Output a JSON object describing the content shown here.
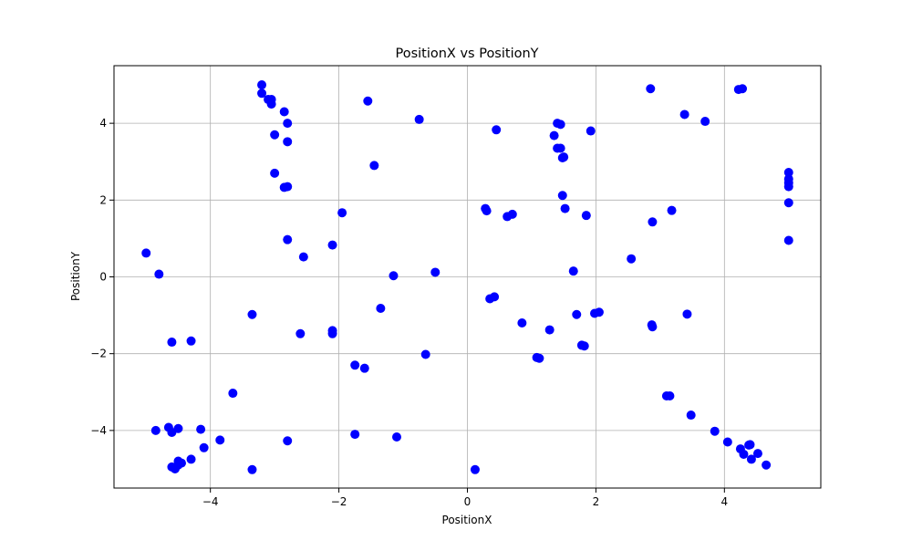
{
  "chart_data": {
    "type": "scatter",
    "title": "PositionX vs PositionY",
    "xlabel": "PositionX",
    "ylabel": "PositionY",
    "xlim": [
      -5.5,
      5.5
    ],
    "ylim": [
      -5.5,
      5.5
    ],
    "xticks": [
      -4,
      -2,
      0,
      2,
      4
    ],
    "yticks": [
      -4,
      -2,
      0,
      2,
      4
    ],
    "xtick_labels": [
      "−4",
      "−2",
      "0",
      "2",
      "4"
    ],
    "ytick_labels": [
      "−4",
      "−2",
      "0",
      "2",
      "4"
    ],
    "grid": true,
    "marker_color": "#0000ff",
    "series": [
      {
        "x": [
          -5.0,
          -4.8,
          -4.6,
          -4.3,
          -4.85,
          -4.65,
          -4.6,
          -4.5,
          -4.15,
          -3.85,
          -4.1,
          -4.3,
          -4.5,
          -4.45,
          -4.6,
          -4.55,
          -4.5,
          -3.65,
          -3.35,
          -3.35,
          -2.8,
          -2.6,
          -2.1,
          -2.1,
          -1.75,
          -1.6,
          -1.75,
          -1.1,
          -0.65,
          -1.35,
          -1.15,
          -0.5,
          -3.2,
          -3.2,
          -3.1,
          -3.05,
          -3.0,
          -2.85,
          -2.8,
          -3.0,
          -2.8,
          -3.05,
          -2.85,
          -2.8,
          -2.8,
          -2.55,
          -2.1,
          -1.95,
          -1.55,
          -1.45,
          -0.75,
          0.12,
          0.3,
          0.28,
          0.35,
          0.42,
          0.45,
          0.62,
          0.7,
          0.85,
          1.08,
          1.12,
          1.28,
          1.35,
          1.4,
          1.45,
          1.4,
          1.45,
          1.48,
          1.5,
          1.52,
          1.48,
          1.65,
          1.7,
          1.78,
          1.82,
          1.85,
          1.92,
          1.98,
          2.05,
          2.55,
          2.85,
          2.88,
          2.87,
          2.88,
          3.15,
          3.1,
          3.18,
          3.38,
          3.42,
          3.48,
          3.7,
          3.85,
          4.05,
          4.22,
          4.25,
          4.28,
          4.3,
          4.38,
          4.42,
          4.4,
          4.52,
          4.65,
          5.0,
          5.0,
          5.0,
          5.0,
          5.0,
          5.0
        ],
        "y": [
          0.62,
          0.07,
          -1.7,
          -1.67,
          -4.0,
          -3.92,
          -4.05,
          -3.95,
          -3.97,
          -4.25,
          -4.45,
          -4.75,
          -4.8,
          -4.85,
          -4.95,
          -5.0,
          -4.9,
          -3.03,
          -0.98,
          -5.02,
          -4.27,
          -1.48,
          -1.4,
          -1.48,
          -4.1,
          -2.38,
          -2.3,
          -4.17,
          -2.02,
          -0.82,
          0.03,
          0.12,
          5.0,
          4.78,
          4.62,
          4.5,
          3.7,
          4.3,
          4.0,
          2.7,
          3.52,
          4.62,
          2.33,
          2.35,
          0.97,
          0.52,
          0.83,
          1.67,
          4.58,
          2.9,
          4.1,
          -5.02,
          1.72,
          1.78,
          -0.57,
          -0.52,
          3.83,
          1.57,
          1.63,
          -1.2,
          -2.1,
          -2.12,
          -1.38,
          3.68,
          4.0,
          3.97,
          3.35,
          3.35,
          3.1,
          3.12,
          1.78,
          2.12,
          0.15,
          -0.98,
          -1.78,
          -1.8,
          1.6,
          3.8,
          -0.95,
          -0.92,
          0.47,
          4.9,
          1.43,
          -1.25,
          -1.3,
          -3.1,
          -3.1,
          1.73,
          4.23,
          -0.97,
          -3.6,
          4.05,
          -4.02,
          -4.3,
          4.88,
          -4.48,
          4.9,
          -4.62,
          -4.38,
          -4.75,
          -4.37,
          -4.6,
          -4.9,
          2.72,
          2.55,
          2.45,
          2.35,
          1.93,
          0.95
        ]
      }
    ]
  }
}
